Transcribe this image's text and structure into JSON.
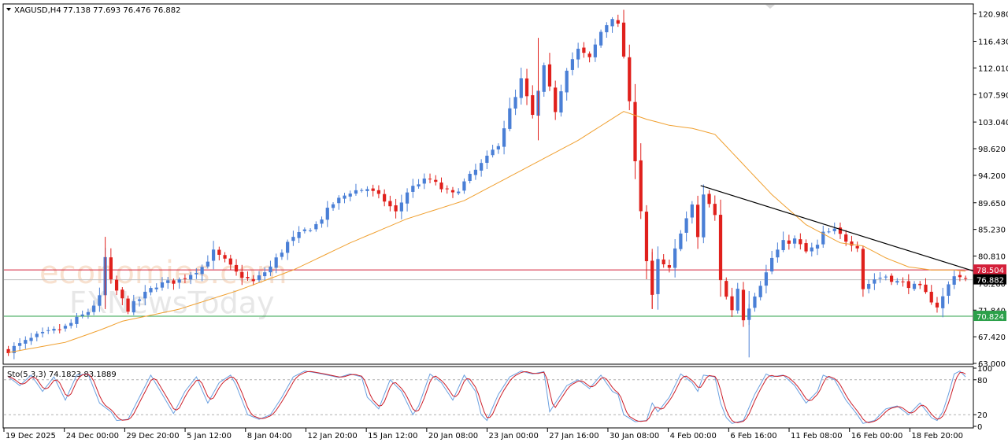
{
  "header": {
    "symbol": "XAGUSD,H4",
    "ohlc": "77.138 77.693 76.476 76.882"
  },
  "watermark": {
    "brand": "economies.com",
    "brand2": "FXNewsToday"
  },
  "price_axis": {
    "ticks": [
      "120.980",
      "116.430",
      "112.010",
      "107.590",
      "103.040",
      "98.620",
      "94.200",
      "89.650",
      "85.230",
      "80.810",
      "76.260",
      "71.840",
      "67.420",
      "63.000"
    ]
  },
  "time_axis": {
    "ticks": [
      "19 Dec 2025",
      "24 Dec 00:00",
      "29 Dec 20:00",
      "5 Jan 12:00",
      "8 Jan 04:00",
      "12 Jan 20:00",
      "15 Jan 12:00",
      "20 Jan 08:00",
      "23 Jan 00:00",
      "27 Jan 16:00",
      "30 Jan 08:00",
      "4 Feb 00:00",
      "6 Feb 16:00",
      "11 Feb 08:00",
      "16 Feb 00:00",
      "18 Feb 20:00"
    ]
  },
  "levels": {
    "resistance_label": "78.504",
    "current_label": "76.882",
    "support_label": "70.824"
  },
  "oscillator": {
    "label": "Sto(5,3,3) 74.1823 83.1889",
    "ticks": [
      "100",
      "80",
      "20",
      "0"
    ]
  },
  "colors": {
    "bull": "#4a7fd6",
    "bear": "#e0201c",
    "ma": "#f0a030",
    "resistance": "#d4203a",
    "support": "#2ca04a",
    "trendline": "#000000",
    "stoch_main": "#6aa0e0",
    "stoch_signal": "#cc1f2a"
  },
  "chart_data": {
    "type": "line",
    "title": "XAGUSD,H4",
    "ylim": [
      63.0,
      122.5
    ],
    "price_anchors": [
      [
        0,
        65.2
      ],
      [
        5,
        67.5
      ],
      [
        10,
        69.0
      ],
      [
        14,
        71.6
      ],
      [
        16,
        73.9
      ],
      [
        17,
        80.5
      ],
      [
        18,
        76.5
      ],
      [
        21,
        72.0
      ],
      [
        24,
        74.5
      ],
      [
        26,
        76.0
      ],
      [
        30,
        76.8
      ],
      [
        34,
        79.0
      ],
      [
        36,
        81.5
      ],
      [
        38,
        80.0
      ],
      [
        40,
        78.0
      ],
      [
        43,
        76.5
      ],
      [
        46,
        79.0
      ],
      [
        49,
        83.0
      ],
      [
        52,
        85.0
      ],
      [
        54,
        86.0
      ],
      [
        57,
        89.5
      ],
      [
        60,
        91.5
      ],
      [
        63,
        92.0
      ],
      [
        66,
        90.0
      ],
      [
        68,
        88.0
      ],
      [
        70,
        91.5
      ],
      [
        72,
        93.0
      ],
      [
        74,
        93.5
      ],
      [
        76,
        92.0
      ],
      [
        78,
        91.0
      ],
      [
        80,
        93.0
      ],
      [
        82,
        95.0
      ],
      [
        84,
        97.0
      ],
      [
        86,
        99.5
      ],
      [
        88,
        105.0
      ],
      [
        89,
        107.0
      ],
      [
        90,
        110.0
      ],
      [
        92,
        104.0
      ],
      [
        94,
        112.0
      ],
      [
        96,
        105.0
      ],
      [
        98,
        112.0
      ],
      [
        100,
        115.0
      ],
      [
        102,
        113.5
      ],
      [
        104,
        118.0
      ],
      [
        106,
        120.5
      ],
      [
        107,
        119.0
      ],
      [
        108,
        114.0
      ],
      [
        109,
        106.0
      ],
      [
        110,
        97.0
      ],
      [
        112,
        80.0
      ],
      [
        113,
        74.0
      ],
      [
        114,
        80.0
      ],
      [
        116,
        78.5
      ],
      [
        118,
        85.0
      ],
      [
        120,
        89.0
      ],
      [
        121,
        84.0
      ],
      [
        122,
        91.0
      ],
      [
        124,
        87.5
      ],
      [
        125,
        77.0
      ],
      [
        126,
        74.0
      ],
      [
        127,
        72.0
      ],
      [
        128,
        75.5
      ],
      [
        129,
        70.5
      ],
      [
        131,
        74.5
      ],
      [
        133,
        78.0
      ],
      [
        134,
        80.5
      ],
      [
        136,
        83.0
      ],
      [
        138,
        83.5
      ],
      [
        140,
        81.5
      ],
      [
        142,
        82.5
      ],
      [
        143,
        84.5
      ],
      [
        145,
        85.0
      ],
      [
        147,
        83.5
      ],
      [
        149,
        82.5
      ],
      [
        150,
        75.5
      ],
      [
        152,
        77.0
      ],
      [
        154,
        77.5
      ],
      [
        156,
        76.5
      ],
      [
        158,
        76.0
      ],
      [
        160,
        75.5
      ],
      [
        162,
        73.5
      ],
      [
        163,
        72.5
      ],
      [
        164,
        74.0
      ],
      [
        165,
        76.0
      ],
      [
        166,
        77.8
      ],
      [
        168,
        76.9
      ]
    ],
    "ma_anchors": [
      [
        0,
        64.8
      ],
      [
        10,
        66.5
      ],
      [
        16,
        68.5
      ],
      [
        20,
        70.0
      ],
      [
        30,
        72.0
      ],
      [
        40,
        75.0
      ],
      [
        50,
        78.5
      ],
      [
        60,
        83.0
      ],
      [
        70,
        87.0
      ],
      [
        80,
        90.0
      ],
      [
        90,
        95.0
      ],
      [
        100,
        100.0
      ],
      [
        108,
        104.8
      ],
      [
        112,
        103.5
      ],
      [
        116,
        102.5
      ],
      [
        120,
        102.0
      ],
      [
        124,
        101.0
      ],
      [
        128,
        97.0
      ],
      [
        134,
        91.0
      ],
      [
        140,
        86.0
      ],
      [
        146,
        83.0
      ],
      [
        150,
        82.5
      ],
      [
        154,
        80.5
      ],
      [
        158,
        79.0
      ],
      [
        162,
        78.5
      ],
      [
        166,
        78.5
      ],
      [
        168,
        78.3
      ]
    ],
    "trendline": {
      "start": [
        122,
        92.5
      ],
      "end": [
        175,
        76.8
      ]
    },
    "levels": [
      78.504,
      76.882,
      70.824
    ],
    "stochastic": {
      "main_anchors": [
        [
          0,
          85
        ],
        [
          2,
          70
        ],
        [
          4,
          88
        ],
        [
          6,
          60
        ],
        [
          8,
          85
        ],
        [
          10,
          45
        ],
        [
          12,
          88
        ],
        [
          14,
          90
        ],
        [
          16,
          40
        ],
        [
          18,
          25
        ],
        [
          19,
          10
        ],
        [
          21,
          12
        ],
        [
          23,
          50
        ],
        [
          25,
          88
        ],
        [
          27,
          55
        ],
        [
          29,
          22
        ],
        [
          31,
          60
        ],
        [
          33,
          85
        ],
        [
          35,
          40
        ],
        [
          37,
          75
        ],
        [
          39,
          88
        ],
        [
          40,
          70
        ],
        [
          42,
          20
        ],
        [
          44,
          12
        ],
        [
          46,
          20
        ],
        [
          48,
          50
        ],
        [
          50,
          85
        ],
        [
          52,
          95
        ],
        [
          54,
          92
        ],
        [
          56,
          88
        ],
        [
          58,
          84
        ],
        [
          60,
          90
        ],
        [
          62,
          85
        ],
        [
          63,
          50
        ],
        [
          65,
          30
        ],
        [
          67,
          80
        ],
        [
          69,
          60
        ],
        [
          71,
          20
        ],
        [
          72,
          35
        ],
        [
          74,
          90
        ],
        [
          76,
          75
        ],
        [
          78,
          45
        ],
        [
          80,
          88
        ],
        [
          82,
          60
        ],
        [
          83,
          20
        ],
        [
          84,
          10
        ],
        [
          86,
          55
        ],
        [
          88,
          85
        ],
        [
          90,
          95
        ],
        [
          92,
          90
        ],
        [
          94,
          94
        ],
        [
          95,
          25
        ],
        [
          96,
          40
        ],
        [
          98,
          70
        ],
        [
          100,
          80
        ],
        [
          102,
          65
        ],
        [
          104,
          88
        ],
        [
          106,
          60
        ],
        [
          107,
          55
        ],
        [
          108,
          20
        ],
        [
          110,
          8
        ],
        [
          112,
          10
        ],
        [
          113,
          40
        ],
        [
          114,
          25
        ],
        [
          116,
          50
        ],
        [
          118,
          90
        ],
        [
          120,
          75
        ],
        [
          121,
          60
        ],
        [
          122,
          88
        ],
        [
          124,
          85
        ],
        [
          125,
          40
        ],
        [
          126,
          15
        ],
        [
          127,
          5
        ],
        [
          129,
          10
        ],
        [
          131,
          55
        ],
        [
          133,
          90
        ],
        [
          134,
          85
        ],
        [
          136,
          88
        ],
        [
          138,
          70
        ],
        [
          140,
          40
        ],
        [
          142,
          60
        ],
        [
          143,
          88
        ],
        [
          145,
          80
        ],
        [
          147,
          45
        ],
        [
          149,
          20
        ],
        [
          150,
          5
        ],
        [
          152,
          10
        ],
        [
          154,
          30
        ],
        [
          156,
          35
        ],
        [
          158,
          20
        ],
        [
          160,
          40
        ],
        [
          162,
          15
        ],
        [
          163,
          10
        ],
        [
          164,
          25
        ],
        [
          165,
          55
        ],
        [
          166,
          90
        ],
        [
          167,
          95
        ],
        [
          168,
          85
        ]
      ],
      "signal_offset": 1
    }
  }
}
